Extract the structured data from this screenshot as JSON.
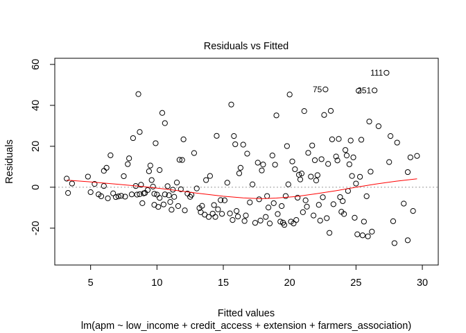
{
  "chart_data": {
    "type": "scatter",
    "title": "Residuals vs Fitted",
    "xlabel": "Fitted values",
    "sublabel": "lm(apm ~ low_income + credit_access + extension + farmers_association)",
    "ylabel": "Residuals",
    "xlim": [
      2.3,
      31.2
    ],
    "ylim": [
      -38,
      63
    ],
    "xticks": [
      5,
      10,
      15,
      20,
      25,
      30
    ],
    "yticks": [
      -20,
      0,
      20,
      40,
      60
    ],
    "xtick_labels": [
      "5",
      "10",
      "15",
      "20",
      "25",
      "30"
    ],
    "ytick_labels": [
      "-20",
      "0",
      "20",
      "40",
      "60"
    ],
    "grid": false,
    "reference_line_y": 0,
    "smoother_color": "#ff0000",
    "reference_line_color": "#999999",
    "points": [
      [
        3.2,
        4.2
      ],
      [
        3.3,
        -2.8
      ],
      [
        3.6,
        1.8
      ],
      [
        4.8,
        5.2
      ],
      [
        5.0,
        -2.4
      ],
      [
        5.3,
        1.6
      ],
      [
        5.6,
        -3.5
      ],
      [
        5.8,
        -4.4
      ],
      [
        6.0,
        0.6
      ],
      [
        6.0,
        8.0
      ],
      [
        6.2,
        9.5
      ],
      [
        6.3,
        -5.4
      ],
      [
        6.5,
        15.6
      ],
      [
        6.7,
        -3.0
      ],
      [
        6.9,
        -4.8
      ],
      [
        7.1,
        -4.5
      ],
      [
        7.3,
        -4.2
      ],
      [
        7.5,
        5.4
      ],
      [
        7.6,
        -4.6
      ],
      [
        7.8,
        11.3
      ],
      [
        7.9,
        14.1
      ],
      [
        8.1,
        -3.5
      ],
      [
        8.2,
        24.0
      ],
      [
        8.4,
        0.6
      ],
      [
        8.5,
        -3.6
      ],
      [
        8.6,
        45.5
      ],
      [
        8.7,
        27.0
      ],
      [
        8.7,
        -3.4
      ],
      [
        8.8,
        1.2
      ],
      [
        8.9,
        -7.8
      ],
      [
        9.0,
        -3.0
      ],
      [
        9.1,
        -2.8
      ],
      [
        9.3,
        -1.4
      ],
      [
        9.4,
        7.8
      ],
      [
        9.5,
        10.6
      ],
      [
        9.6,
        3.5
      ],
      [
        9.7,
        0.3
      ],
      [
        9.8,
        -3.2
      ],
      [
        9.8,
        -8.6
      ],
      [
        9.9,
        21.5
      ],
      [
        10.0,
        -3.6
      ],
      [
        10.1,
        -9.6
      ],
      [
        10.2,
        -5.2
      ],
      [
        10.2,
        8.4
      ],
      [
        10.4,
        36.3
      ],
      [
        10.5,
        -8.4
      ],
      [
        10.6,
        -3.5
      ],
      [
        10.6,
        31.3
      ],
      [
        10.8,
        0.5
      ],
      [
        10.9,
        -3.9
      ],
      [
        11.0,
        -7.2
      ],
      [
        11.1,
        -11.0
      ],
      [
        11.2,
        -1.2
      ],
      [
        11.3,
        -4.7
      ],
      [
        11.5,
        2.3
      ],
      [
        11.6,
        -9.2
      ],
      [
        11.7,
        13.4
      ],
      [
        11.8,
        -1.0
      ],
      [
        11.9,
        13.3
      ],
      [
        12.0,
        23.4
      ],
      [
        12.1,
        -11.3
      ],
      [
        12.3,
        -3.1
      ],
      [
        12.5,
        -4.7
      ],
      [
        12.6,
        -3.7
      ],
      [
        12.8,
        16.7
      ],
      [
        13.0,
        -0.6
      ],
      [
        13.2,
        -10.2
      ],
      [
        13.3,
        -12.2
      ],
      [
        13.4,
        -9.1
      ],
      [
        13.6,
        -13.4
      ],
      [
        13.7,
        3.5
      ],
      [
        13.9,
        -14.5
      ],
      [
        14.0,
        5.5
      ],
      [
        14.2,
        -12.9
      ],
      [
        14.3,
        -8.7
      ],
      [
        14.4,
        -14.5
      ],
      [
        14.5,
        25.1
      ],
      [
        14.6,
        -10.8
      ],
      [
        14.8,
        -6.3
      ],
      [
        14.9,
        -13.0
      ],
      [
        15.1,
        -6.4
      ],
      [
        15.3,
        2.2
      ],
      [
        15.5,
        -12.8
      ],
      [
        15.6,
        40.4
      ],
      [
        15.7,
        -16.0
      ],
      [
        15.8,
        25.0
      ],
      [
        15.9,
        21.0
      ],
      [
        16.0,
        -11.6
      ],
      [
        16.1,
        -14.3
      ],
      [
        16.2,
        6.8
      ],
      [
        16.3,
        9.5
      ],
      [
        16.5,
        20.8
      ],
      [
        16.6,
        -16.5
      ],
      [
        16.7,
        -13.8
      ],
      [
        16.8,
        16.4
      ],
      [
        17.0,
        -7.4
      ],
      [
        17.2,
        1.4
      ],
      [
        17.4,
        -17.4
      ],
      [
        17.6,
        12.0
      ],
      [
        17.7,
        -5.9
      ],
      [
        17.8,
        -16.3
      ],
      [
        17.9,
        8.2
      ],
      [
        18.0,
        11.1
      ],
      [
        18.2,
        -14.5
      ],
      [
        18.3,
        -4.3
      ],
      [
        18.4,
        -9.9
      ],
      [
        18.5,
        -17.7
      ],
      [
        18.7,
        15.5
      ],
      [
        18.8,
        -7.8
      ],
      [
        18.9,
        11.0
      ],
      [
        19.0,
        35.1
      ],
      [
        19.1,
        -13.1
      ],
      [
        19.3,
        -16.8
      ],
      [
        19.4,
        -9.2
      ],
      [
        19.5,
        -17.3
      ],
      [
        19.6,
        -18.4
      ],
      [
        19.7,
        -4.3
      ],
      [
        19.8,
        20.1
      ],
      [
        19.9,
        1.4
      ],
      [
        20.0,
        45.3
      ],
      [
        20.1,
        -16.8
      ],
      [
        20.2,
        12.6
      ],
      [
        20.3,
        -17.7
      ],
      [
        20.4,
        8.8
      ],
      [
        20.5,
        -16.0
      ],
      [
        20.6,
        -5.1
      ],
      [
        20.7,
        6.1
      ],
      [
        20.8,
        3.8
      ],
      [
        20.9,
        6.7
      ],
      [
        21.0,
        -12.2
      ],
      [
        21.1,
        37.2
      ],
      [
        21.2,
        -6.4
      ],
      [
        21.3,
        -9.5
      ],
      [
        21.4,
        16.8
      ],
      [
        21.6,
        5.2
      ],
      [
        21.7,
        20.4
      ],
      [
        21.8,
        -13.8
      ],
      [
        21.9,
        13.2
      ],
      [
        22.0,
        3.3
      ],
      [
        22.1,
        5.9
      ],
      [
        22.2,
        -8.6
      ],
      [
        22.3,
        -16.3
      ],
      [
        22.4,
        13.7
      ],
      [
        22.5,
        -4.9
      ],
      [
        22.6,
        35.3
      ],
      [
        22.7,
        47.8
      ],
      [
        22.8,
        -15.1
      ],
      [
        22.9,
        11.4
      ],
      [
        23.0,
        -22.3
      ],
      [
        23.1,
        37.3
      ],
      [
        23.2,
        23.4
      ],
      [
        23.3,
        -8.3
      ],
      [
        23.5,
        15.0
      ],
      [
        23.6,
        13.1
      ],
      [
        23.7,
        23.6
      ],
      [
        23.8,
        -4.8
      ],
      [
        23.9,
        -12.0
      ],
      [
        24.0,
        -6.8
      ],
      [
        24.1,
        -13.1
      ],
      [
        24.2,
        18.2
      ],
      [
        24.3,
        15.5
      ],
      [
        24.4,
        -1.8
      ],
      [
        24.5,
        11.2
      ],
      [
        24.6,
        22.8
      ],
      [
        24.7,
        5.5
      ],
      [
        24.8,
        14.6
      ],
      [
        24.9,
        -14.9
      ],
      [
        25.0,
        1.8
      ],
      [
        25.1,
        -23.0
      ],
      [
        25.2,
        47.1
      ],
      [
        25.3,
        5.1
      ],
      [
        25.4,
        23.2
      ],
      [
        25.5,
        -23.5
      ],
      [
        25.6,
        -16.8
      ],
      [
        25.8,
        -4.4
      ],
      [
        25.9,
        -24.0
      ],
      [
        26.0,
        32.1
      ],
      [
        26.1,
        7.6
      ],
      [
        26.2,
        -21.7
      ],
      [
        26.4,
        47.3
      ],
      [
        26.7,
        29.8
      ],
      [
        27.3,
        55.9
      ],
      [
        27.5,
        12.3
      ],
      [
        27.6,
        25.0
      ],
      [
        27.8,
        -16.6
      ],
      [
        27.9,
        -27.3
      ],
      [
        28.1,
        21.8
      ],
      [
        28.6,
        -8.0
      ],
      [
        28.9,
        7.4
      ],
      [
        28.9,
        -25.9
      ],
      [
        29.1,
        14.6
      ],
      [
        29.3,
        -11.6
      ],
      [
        29.6,
        15.3
      ]
    ],
    "labeled_points": [
      {
        "label": "111",
        "x": 27.3,
        "y": 55.9
      },
      {
        "label": "75",
        "x": 22.7,
        "y": 47.8
      },
      {
        "label": "251",
        "x": 26.4,
        "y": 47.3
      }
    ],
    "smoother": [
      [
        3.2,
        3.5
      ],
      [
        5,
        2.6
      ],
      [
        7,
        1.5
      ],
      [
        9,
        0.3
      ],
      [
        11,
        -1.2
      ],
      [
        13,
        -2.9
      ],
      [
        15,
        -4.4
      ],
      [
        16.5,
        -5.2
      ],
      [
        17.8,
        -5.6
      ],
      [
        19,
        -5.3
      ],
      [
        20.5,
        -4.5
      ],
      [
        22,
        -3.2
      ],
      [
        23.5,
        -1.7
      ],
      [
        25,
        0.0
      ],
      [
        26.5,
        1.6
      ],
      [
        28,
        2.9
      ],
      [
        29.6,
        4.1
      ]
    ]
  }
}
